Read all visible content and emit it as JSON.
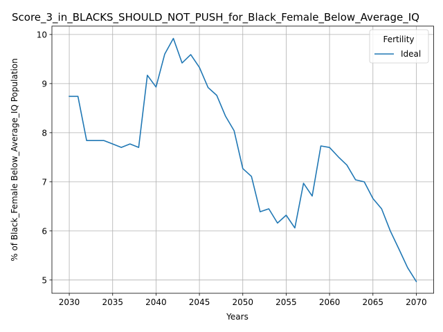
{
  "chart_data": {
    "type": "line",
    "title": "Score_3_in_BLACKS_SHOULD_NOT_PUSH_for_Black_Female_Below_Average_IQ",
    "xlabel": "Years",
    "ylabel": "% of Black_Female Below_Average_IQ Population",
    "xlim": [
      2028,
      2072
    ],
    "ylim": [
      4.73,
      10.17
    ],
    "xticks": [
      2030,
      2035,
      2040,
      2045,
      2050,
      2055,
      2060,
      2065,
      2070
    ],
    "yticks": [
      5,
      6,
      7,
      8,
      9,
      10
    ],
    "grid": true,
    "legend": {
      "title": "Fertility",
      "placement": "top-right"
    },
    "series": [
      {
        "name": "Ideal",
        "color": "#1f77b4",
        "x": [
          2030,
          2031,
          2032,
          2033,
          2034,
          2035,
          2036,
          2037,
          2038,
          2039,
          2040,
          2041,
          2042,
          2043,
          2044,
          2045,
          2046,
          2047,
          2048,
          2049,
          2050,
          2051,
          2052,
          2053,
          2054,
          2055,
          2056,
          2057,
          2058,
          2059,
          2060,
          2061,
          2062,
          2063,
          2064,
          2065,
          2066,
          2067,
          2068,
          2069,
          2070
        ],
        "values": [
          8.74,
          8.74,
          7.84,
          7.84,
          7.84,
          7.77,
          7.7,
          7.77,
          7.7,
          9.17,
          8.93,
          9.6,
          9.92,
          9.42,
          9.59,
          9.33,
          8.92,
          8.76,
          8.34,
          8.04,
          7.27,
          7.11,
          6.39,
          6.45,
          6.16,
          6.32,
          6.06,
          6.97,
          6.71,
          7.73,
          7.7,
          7.51,
          7.34,
          7.04,
          7.0,
          6.66,
          6.45,
          6.0,
          5.63,
          5.25,
          4.97
        ]
      }
    ]
  }
}
